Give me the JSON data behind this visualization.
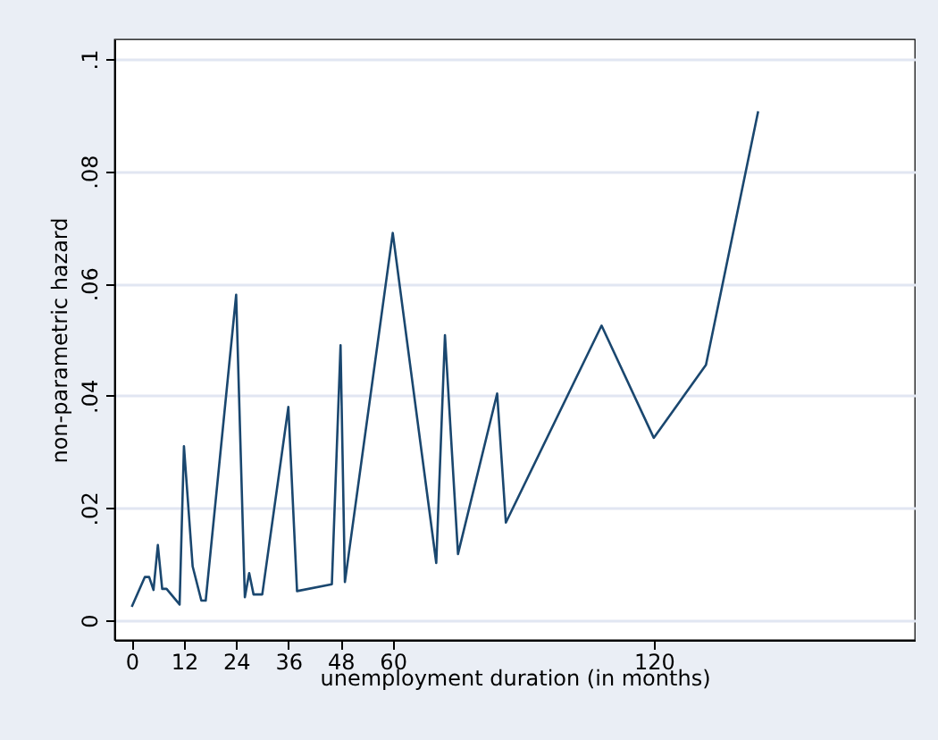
{
  "chart_data": {
    "type": "line",
    "xlabel": "unemployment duration (in months)",
    "ylabel": "non-parametric hazard",
    "x": [
      0,
      3,
      4,
      5,
      6,
      7,
      8,
      11,
      12,
      14,
      16,
      17,
      24,
      26,
      27,
      28,
      30,
      36,
      38,
      46,
      48,
      49,
      60,
      70,
      72,
      75,
      84,
      86,
      108,
      120,
      132,
      144
    ],
    "series": [
      {
        "color": "#1a476f",
        "values": [
          0.0024,
          0.0077,
          0.0077,
          0.0054,
          0.0134,
          0.0056,
          0.0056,
          0.0028,
          0.031,
          0.0096,
          0.0035,
          0.0035,
          0.058,
          0.0041,
          0.0084,
          0.0046,
          0.0046,
          0.038,
          0.0052,
          0.0064,
          0.049,
          0.0068,
          0.069,
          0.0102,
          0.0508,
          0.0118,
          0.0404,
          0.0174,
          0.0525,
          0.0325,
          0.0455,
          0.0907
        ]
      }
    ],
    "xlim": [
      -4,
      180
    ],
    "xticks": [
      0,
      12,
      24,
      36,
      48,
      60,
      120
    ],
    "ylim": [
      -0.0035,
      0.1035
    ],
    "yticks": [
      {
        "value": 0,
        "label": "0"
      },
      {
        "value": 0.02,
        "label": ".02"
      },
      {
        "value": 0.04,
        "label": ".04"
      },
      {
        "value": 0.06,
        "label": ".06"
      },
      {
        "value": 0.08,
        "label": ".08"
      },
      {
        "value": 0.1,
        "label": ".1"
      }
    ],
    "grid": "y",
    "marker": "none",
    "line_style": "solid"
  }
}
